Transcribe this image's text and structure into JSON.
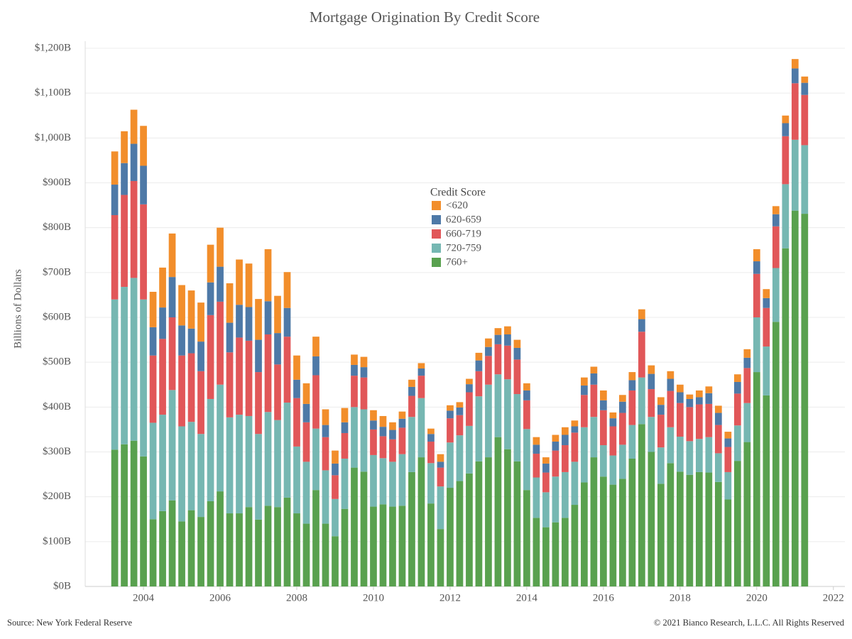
{
  "chart_data": {
    "type": "stacked_bar",
    "title": "Mortgage Origination By Credit Score",
    "y_label": "Billions of Dollars",
    "source": "Source: New York Federal Reserve",
    "copyright": "© 2021 Bianco Research, L.L.C. All Rights Reserved",
    "legend_title": "Credit Score",
    "grid": true,
    "xlim": [
      2002.48,
      2022.3
    ],
    "xticks": [
      2004,
      2006,
      2008,
      2010,
      2012,
      2014,
      2016,
      2018,
      2020,
      2022
    ],
    "ylim": [
      0,
      1200
    ],
    "yticks": [
      {
        "value": 0,
        "label": "$0B"
      },
      {
        "value": 100,
        "label": "$100B"
      },
      {
        "value": 200,
        "label": "$200B"
      },
      {
        "value": 300,
        "label": "$300B"
      },
      {
        "value": 400,
        "label": "$400B"
      },
      {
        "value": 500,
        "label": "$500B"
      },
      {
        "value": 600,
        "label": "$600B"
      },
      {
        "value": 700,
        "label": "$700B"
      },
      {
        "value": 800,
        "label": "$800B"
      },
      {
        "value": 900,
        "label": "$900B"
      },
      {
        "value": 1000,
        "label": "$1,000B"
      },
      {
        "value": 1100,
        "label": "$1,100B"
      },
      {
        "value": 1200,
        "label": "$1,200B"
      }
    ],
    "x": [
      2003.25,
      2003.5,
      2003.75,
      2004,
      2004.25,
      2004.5,
      2004.75,
      2005,
      2005.25,
      2005.5,
      2005.75,
      2006,
      2006.25,
      2006.5,
      2006.75,
      2007,
      2007.25,
      2007.5,
      2007.75,
      2008,
      2008.25,
      2008.5,
      2008.75,
      2009,
      2009.25,
      2009.5,
      2009.75,
      2010,
      2010.25,
      2010.5,
      2010.75,
      2011,
      2011.25,
      2011.5,
      2011.75,
      2012,
      2012.25,
      2012.5,
      2012.75,
      2013,
      2013.25,
      2013.5,
      2013.75,
      2014,
      2014.25,
      2014.5,
      2014.75,
      2015,
      2015.25,
      2015.5,
      2015.75,
      2016,
      2016.25,
      2016.5,
      2016.75,
      2017,
      2017.25,
      2017.5,
      2017.75,
      2018,
      2018.25,
      2018.5,
      2018.75,
      2019,
      2019.25,
      2019.5,
      2019.75,
      2020,
      2020.25,
      2020.5,
      2020.75,
      2021,
      2021.25
    ],
    "series": [
      {
        "name": "760+",
        "color": "#59a14f",
        "values": [
          305,
          317,
          325,
          290,
          150,
          168,
          192,
          145,
          170,
          155,
          190,
          212,
          163,
          163,
          177,
          149,
          180,
          177,
          198,
          163,
          140,
          215,
          140,
          112,
          173,
          265,
          256,
          178,
          183,
          178,
          180,
          255,
          288,
          185,
          128,
          220,
          235,
          252,
          279,
          288,
          333,
          306,
          279,
          215,
          153,
          132,
          143,
          153,
          182,
          232,
          288,
          245,
          227,
          240,
          285,
          362,
          300,
          229,
          275,
          256,
          249,
          255,
          254,
          233,
          194,
          280,
          322,
          478,
          426,
          590,
          754,
          838,
          831
        ]
      },
      {
        "name": "720-759",
        "color": "#76b7b2",
        "values": [
          335,
          351,
          363,
          350,
          215,
          215,
          246,
          212,
          197,
          185,
          228,
          238,
          214,
          220,
          203,
          191,
          209,
          194,
          212,
          149,
          138,
          137,
          119,
          83,
          112,
          135,
          139,
          115,
          103,
          100,
          115,
          123,
          132,
          90,
          95,
          101,
          102,
          106,
          145,
          162,
          140,
          156,
          150,
          136,
          90,
          78,
          102,
          102,
          96,
          123,
          90,
          70,
          65,
          76,
          75,
          104,
          78,
          81,
          80,
          78,
          75,
          74,
          79,
          64,
          61,
          79,
          87,
          122,
          109,
          120,
          143,
          158,
          153
        ]
      },
      {
        "name": "660-719",
        "color": "#e15759",
        "values": [
          188,
          205,
          216,
          212,
          150,
          169,
          162,
          158,
          153,
          140,
          187,
          185,
          145,
          172,
          168,
          138,
          173,
          124,
          147,
          108,
          88,
          119,
          74,
          53,
          57,
          70,
          71,
          57,
          49,
          50,
          59,
          47,
          50,
          48,
          42,
          54,
          45,
          75,
          56,
          64,
          67,
          75,
          77,
          64,
          53,
          44,
          58,
          60,
          65,
          72,
          72,
          78,
          65,
          71,
          77,
          102,
          62,
          73,
          81,
          75,
          76,
          77,
          74,
          63,
          56,
          71,
          78,
          97,
          86,
          93,
          107,
          126,
          112
        ]
      },
      {
        "name": "620-659",
        "color": "#4e79a7",
        "values": [
          68,
          71,
          83,
          86,
          63,
          70,
          90,
          67,
          55,
          66,
          73,
          78,
          66,
          73,
          75,
          72,
          74,
          70,
          64,
          41,
          41,
          42,
          27,
          26,
          24,
          24,
          23,
          20,
          21,
          21,
          20,
          20,
          16,
          17,
          13,
          17,
          17,
          18,
          24,
          20,
          21,
          25,
          26,
          22,
          20,
          20,
          20,
          23,
          14,
          21,
          25,
          22,
          18,
          25,
          23,
          28,
          34,
          22,
          27,
          24,
          18,
          16,
          24,
          27,
          19,
          26,
          23,
          28,
          22,
          27,
          29,
          33,
          27
        ]
      },
      {
        "name": "<620",
        "color": "#f28e2b",
        "values": [
          74,
          71,
          76,
          89,
          79,
          89,
          97,
          90,
          85,
          87,
          84,
          87,
          88,
          101,
          97,
          91,
          116,
          83,
          80,
          54,
          46,
          44,
          35,
          29,
          32,
          23,
          23,
          23,
          24,
          17,
          16,
          16,
          12,
          12,
          17,
          12,
          12,
          12,
          17,
          19,
          15,
          18,
          18,
          16,
          17,
          14,
          15,
          17,
          13,
          18,
          15,
          22,
          13,
          15,
          18,
          22,
          19,
          17,
          17,
          17,
          10,
          15,
          15,
          16,
          15,
          17,
          19,
          27,
          20,
          18,
          17,
          21,
          14
        ]
      }
    ]
  }
}
